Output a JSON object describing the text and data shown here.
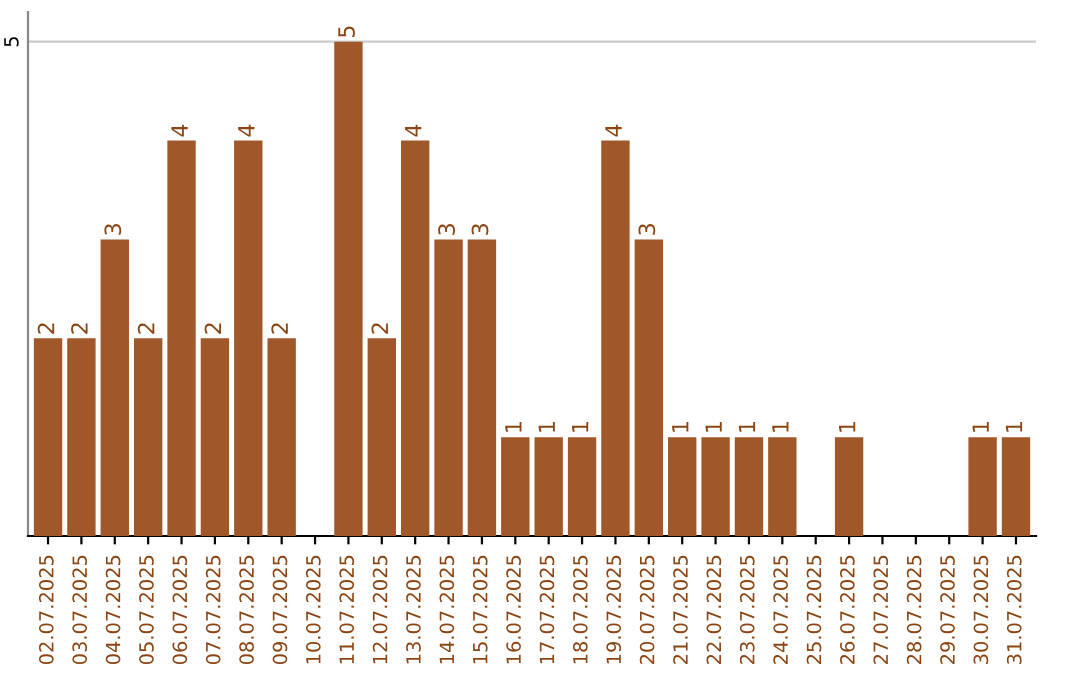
{
  "chart_data": {
    "type": "bar",
    "categories": [
      "02.07.2025",
      "03.07.2025",
      "04.07.2025",
      "05.07.2025",
      "06.07.2025",
      "07.07.2025",
      "08.07.2025",
      "09.07.2025",
      "10.07.2025",
      "11.07.2025",
      "12.07.2025",
      "13.07.2025",
      "14.07.2025",
      "15.07.2025",
      "16.07.2025",
      "17.07.2025",
      "18.07.2025",
      "19.07.2025",
      "20.07.2025",
      "21.07.2025",
      "22.07.2025",
      "23.07.2025",
      "24.07.2025",
      "25.07.2025",
      "26.07.2025",
      "27.07.2025",
      "28.07.2025",
      "29.07.2025",
      "30.07.2025",
      "31.07.2025"
    ],
    "values": [
      2,
      2,
      3,
      2,
      4,
      2,
      4,
      2,
      0,
      5,
      2,
      4,
      3,
      3,
      1,
      1,
      1,
      4,
      3,
      1,
      1,
      1,
      1,
      0,
      1,
      0,
      0,
      0,
      1,
      1
    ],
    "value_labels": [
      "2",
      "2",
      "3",
      "2",
      "4",
      "2",
      "4",
      "2",
      null,
      "5",
      "2",
      "4",
      "3",
      "3",
      "1",
      "1",
      "1",
      "4",
      "3",
      "1",
      "1",
      "1",
      "1",
      null,
      "1",
      null,
      null,
      null,
      "1",
      "1"
    ],
    "color": "#a0582a",
    "ylim": [
      0,
      5.3
    ],
    "yticks": [
      5
    ],
    "grid": "y"
  }
}
